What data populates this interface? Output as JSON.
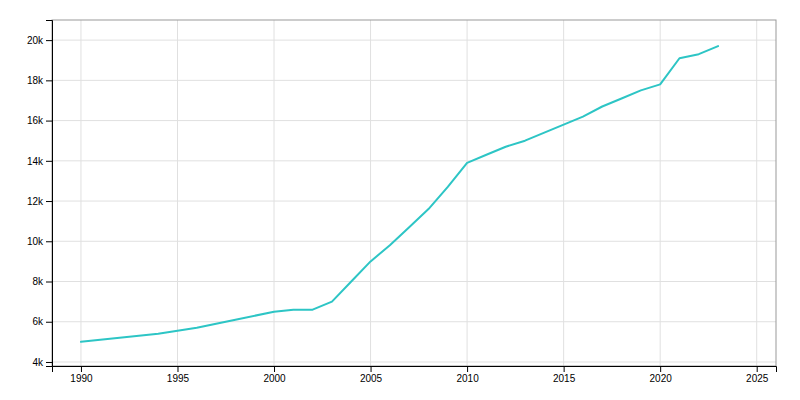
{
  "chart_data": {
    "type": "line",
    "x": [
      1990,
      1992,
      1994,
      1996,
      1998,
      2000,
      2001,
      2002,
      2003,
      2004,
      2005,
      2006,
      2007,
      2008,
      2009,
      2010,
      2011,
      2012,
      2013,
      2014,
      2015,
      2016,
      2017,
      2018,
      2019,
      2020,
      2021,
      2022,
      2023
    ],
    "values": [
      5000,
      5200,
      5400,
      5700,
      6100,
      6500,
      6600,
      6600,
      7000,
      8000,
      9000,
      9800,
      10700,
      11600,
      12700,
      13900,
      14300,
      14700,
      15000,
      15400,
      15800,
      16200,
      16700,
      17100,
      17500,
      17800,
      19100,
      19300,
      19700
    ],
    "color": "#2DC5C5",
    "xlim": [
      1988.5,
      2026
    ],
    "xticks": [
      1990,
      1995,
      2000,
      2005,
      2010,
      2015,
      2020,
      2025
    ],
    "ylim": [
      3800,
      21000
    ],
    "yticks": [
      {
        "value": 4000,
        "label": "4k"
      },
      {
        "value": 6000,
        "label": "6k"
      },
      {
        "value": 8000,
        "label": "8k"
      },
      {
        "value": 10000,
        "label": "10k"
      },
      {
        "value": 12000,
        "label": "12k"
      },
      {
        "value": 14000,
        "label": "14k"
      },
      {
        "value": 16000,
        "label": "16k"
      },
      {
        "value": 18000,
        "label": "18k"
      },
      {
        "value": 20000,
        "label": "20k"
      }
    ],
    "grid": true
  }
}
